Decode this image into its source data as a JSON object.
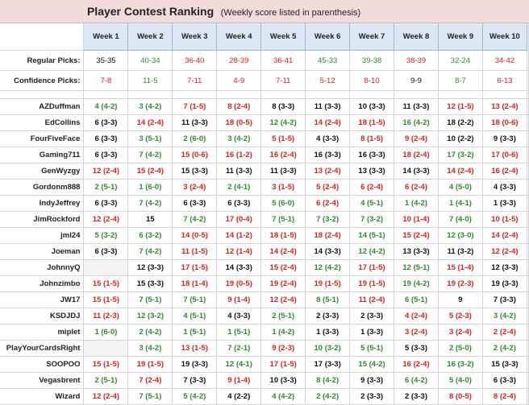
{
  "title": "Player Contest Ranking",
  "subtitle": "(Weekly score listed in parenthesis)",
  "colors": {
    "green": "#2e8b2e",
    "red": "#e0201c",
    "black": "#111111",
    "header_blue": "#dbe8f4",
    "title_pink": "#f2dcdb"
  },
  "weeks": [
    "Week 1",
    "Week 2",
    "Week 3",
    "Week 4",
    "Week 5",
    "Week 6",
    "Week 7",
    "Week 8",
    "Week 9",
    "Week 10"
  ],
  "regular": {
    "label": "Regular Picks:",
    "values": [
      {
        "t": "35-35",
        "c": "k"
      },
      {
        "t": "40-34",
        "c": "g"
      },
      {
        "t": "36-40",
        "c": "r"
      },
      {
        "t": "28-39",
        "c": "r"
      },
      {
        "t": "36-41",
        "c": "r"
      },
      {
        "t": "45-33",
        "c": "g"
      },
      {
        "t": "39-38",
        "c": "g"
      },
      {
        "t": "38-39",
        "c": "r"
      },
      {
        "t": "32-24",
        "c": "g"
      },
      {
        "t": "34-42",
        "c": "r"
      }
    ]
  },
  "confidence": {
    "label": "Confidence Picks:",
    "values": [
      {
        "t": "7-8",
        "c": "r"
      },
      {
        "t": "11-5",
        "c": "g"
      },
      {
        "t": "7-11",
        "c": "r"
      },
      {
        "t": "4-9",
        "c": "r"
      },
      {
        "t": "7-11",
        "c": "r"
      },
      {
        "t": "5-12",
        "c": "r"
      },
      {
        "t": "8-10",
        "c": "r"
      },
      {
        "t": "9-9",
        "c": "k"
      },
      {
        "t": "8-7",
        "c": "g"
      },
      {
        "t": "6-13",
        "c": "r"
      }
    ]
  },
  "players": [
    {
      "name": "AZDuffman",
      "scores": [
        {
          "t": "4 (4-2)",
          "c": "g"
        },
        {
          "t": "3 (4-2)",
          "c": "g"
        },
        {
          "t": "7 (1-5)",
          "c": "r"
        },
        {
          "t": "8 (2-4)",
          "c": "r"
        },
        {
          "t": "8 (3-3)",
          "c": "k"
        },
        {
          "t": "11 (3-3)",
          "c": "k"
        },
        {
          "t": "10 (3-3)",
          "c": "k"
        },
        {
          "t": "11 (3-3)",
          "c": "k"
        },
        {
          "t": "12 (1-5)",
          "c": "r"
        },
        {
          "t": "13 (2-4)",
          "c": "r"
        }
      ]
    },
    {
      "name": "EdCollins",
      "scores": [
        {
          "t": "6 (3-3)",
          "c": "k"
        },
        {
          "t": "14 (2-4)",
          "c": "r"
        },
        {
          "t": "11 (3-3)",
          "c": "k"
        },
        {
          "t": "18 (0-5)",
          "c": "r"
        },
        {
          "t": "12 (4-2)",
          "c": "g"
        },
        {
          "t": "14 (2-4)",
          "c": "r"
        },
        {
          "t": "18 (1-5)",
          "c": "r"
        },
        {
          "t": "16 (4-2)",
          "c": "g"
        },
        {
          "t": "18 (2-2)",
          "c": "k"
        },
        {
          "t": "18 (0-6)",
          "c": "r"
        }
      ]
    },
    {
      "name": "FourFiveFace",
      "scores": [
        {
          "t": "6 (3-3)",
          "c": "k"
        },
        {
          "t": "3 (5-1)",
          "c": "g"
        },
        {
          "t": "2 (6-0)",
          "c": "g"
        },
        {
          "t": "3 (4-2)",
          "c": "g"
        },
        {
          "t": "5 (1-5)",
          "c": "r"
        },
        {
          "t": "4 (3-3)",
          "c": "k"
        },
        {
          "t": "8 (1-5)",
          "c": "r"
        },
        {
          "t": "9 (2-4)",
          "c": "r"
        },
        {
          "t": "10 (2-2)",
          "c": "k"
        },
        {
          "t": "9 (3-3)",
          "c": "k"
        }
      ]
    },
    {
      "name": "Gaming711",
      "scores": [
        {
          "t": "6 (3-3)",
          "c": "k"
        },
        {
          "t": "7 (4-2)",
          "c": "g"
        },
        {
          "t": "15 (0-6)",
          "c": "r"
        },
        {
          "t": "16 (1-2)",
          "c": "r"
        },
        {
          "t": "16 (2-4)",
          "c": "r"
        },
        {
          "t": "16 (3-3)",
          "c": "k"
        },
        {
          "t": "16 (3-3)",
          "c": "k"
        },
        {
          "t": "18 (2-4)",
          "c": "r"
        },
        {
          "t": "17 (3-2)",
          "c": "g"
        },
        {
          "t": "17 (0-6)",
          "c": "r"
        }
      ]
    },
    {
      "name": "GenWyzgy",
      "scores": [
        {
          "t": "12 (2-4)",
          "c": "r"
        },
        {
          "t": "15 (2-4)",
          "c": "r"
        },
        {
          "t": "15 (3-3)",
          "c": "k"
        },
        {
          "t": "11 (3-3)",
          "c": "k"
        },
        {
          "t": "11 (3-3)",
          "c": "k"
        },
        {
          "t": "13 (2-4)",
          "c": "r"
        },
        {
          "t": "13 (3-3)",
          "c": "k"
        },
        {
          "t": "14 (3-3)",
          "c": "k"
        },
        {
          "t": "14 (2-4)",
          "c": "r"
        },
        {
          "t": "16 (2-4)",
          "c": "r"
        }
      ]
    },
    {
      "name": "Gordonm888",
      "scores": [
        {
          "t": "2 (5-1)",
          "c": "g"
        },
        {
          "t": "1 (6-0)",
          "c": "g"
        },
        {
          "t": "3 (2-4)",
          "c": "r"
        },
        {
          "t": "2 (4-1)",
          "c": "g"
        },
        {
          "t": "3 (1-5)",
          "c": "r"
        },
        {
          "t": "5 (2-4)",
          "c": "r"
        },
        {
          "t": "6 (2-4)",
          "c": "r"
        },
        {
          "t": "6 (2-4)",
          "c": "r"
        },
        {
          "t": "4 (5-0)",
          "c": "g"
        },
        {
          "t": "4 (3-3)",
          "c": "k"
        }
      ]
    },
    {
      "name": "IndyJeffrey",
      "scores": [
        {
          "t": "6 (3-3)",
          "c": "k"
        },
        {
          "t": "7 (4-2)",
          "c": "g"
        },
        {
          "t": "6 (3-3)",
          "c": "k"
        },
        {
          "t": "6 (3-3)",
          "c": "k"
        },
        {
          "t": "5 (6-0)",
          "c": "g"
        },
        {
          "t": "6 (2-4)",
          "c": "r"
        },
        {
          "t": "4 (5-1)",
          "c": "g"
        },
        {
          "t": "1 (4-2)",
          "c": "g"
        },
        {
          "t": "1 (4-1)",
          "c": "g"
        },
        {
          "t": "1 (3-3)",
          "c": "k"
        }
      ]
    },
    {
      "name": "JimRockford",
      "scores": [
        {
          "t": "12 (2-4)",
          "c": "r"
        },
        {
          "t": "15",
          "c": "k"
        },
        {
          "t": "7 (4-2)",
          "c": "g"
        },
        {
          "t": "17 (0-4)",
          "c": "r"
        },
        {
          "t": "7 (5-1)",
          "c": "g"
        },
        {
          "t": "7 (3-2)",
          "c": "g"
        },
        {
          "t": "7 (3-2)",
          "c": "g"
        },
        {
          "t": "10 (1-4)",
          "c": "r"
        },
        {
          "t": "7 (4-0)",
          "c": "g"
        },
        {
          "t": "10 (1-5)",
          "c": "r"
        }
      ]
    },
    {
      "name": "jml24",
      "scores": [
        {
          "t": "5 (3-2)",
          "c": "g"
        },
        {
          "t": "6 (3-2)",
          "c": "g"
        },
        {
          "t": "14 (0-5)",
          "c": "r"
        },
        {
          "t": "14 (1-2)",
          "c": "r"
        },
        {
          "t": "18 (1-5)",
          "c": "r"
        },
        {
          "t": "18 (2-4)",
          "c": "r"
        },
        {
          "t": "14 (5-1)",
          "c": "g"
        },
        {
          "t": "15 (2-4)",
          "c": "r"
        },
        {
          "t": "12 (3-0)",
          "c": "g"
        },
        {
          "t": "14 (2-4)",
          "c": "r"
        }
      ]
    },
    {
      "name": "Joeman",
      "scores": [
        {
          "t": "6 (3-3)",
          "c": "k"
        },
        {
          "t": "7 (4-2)",
          "c": "g"
        },
        {
          "t": "11 (1-5)",
          "c": "r"
        },
        {
          "t": "12 (1-4)",
          "c": "r"
        },
        {
          "t": "14 (2-4)",
          "c": "r"
        },
        {
          "t": "14 (3-3)",
          "c": "k"
        },
        {
          "t": "12 (4-2)",
          "c": "g"
        },
        {
          "t": "13 (3-3)",
          "c": "k"
        },
        {
          "t": "11 (3-2)",
          "c": "k"
        },
        {
          "t": "12 (2-4)",
          "c": "r"
        }
      ]
    },
    {
      "name": "JohnnyQ",
      "scores": [
        {
          "t": "",
          "c": "k",
          "gr": true
        },
        {
          "t": "12 (3-3)",
          "c": "k"
        },
        {
          "t": "17 (1-5)",
          "c": "r"
        },
        {
          "t": "14 (3-3)",
          "c": "k"
        },
        {
          "t": "15 (2-4)",
          "c": "r"
        },
        {
          "t": "12 (4-2)",
          "c": "g"
        },
        {
          "t": "17 (1-5)",
          "c": "r"
        },
        {
          "t": "12 (5-1)",
          "c": "g"
        },
        {
          "t": "15 (1-4)",
          "c": "r"
        },
        {
          "t": "12 (3-3)",
          "c": "k"
        }
      ]
    },
    {
      "name": "Johnzimbo",
      "scores": [
        {
          "t": "15 (1-5)",
          "c": "r"
        },
        {
          "t": "15 (3-3)",
          "c": "k"
        },
        {
          "t": "18 (1-4)",
          "c": "r"
        },
        {
          "t": "19 (0-5)",
          "c": "r"
        },
        {
          "t": "19 (2-4)",
          "c": "r"
        },
        {
          "t": "19 (1-5)",
          "c": "r"
        },
        {
          "t": "19 (1-5)",
          "c": "r"
        },
        {
          "t": "19 (4-2)",
          "c": "g"
        },
        {
          "t": "19 (2-3)",
          "c": "r"
        },
        {
          "t": "19 (3-3)",
          "c": "k"
        }
      ]
    },
    {
      "name": "JW17",
      "scores": [
        {
          "t": "15 (1-5)",
          "c": "r"
        },
        {
          "t": "7 (5-1)",
          "c": "g"
        },
        {
          "t": "7 (5-1)",
          "c": "g"
        },
        {
          "t": "9 (1-4)",
          "c": "r"
        },
        {
          "t": "12 (2-4)",
          "c": "r"
        },
        {
          "t": "8 (5-1)",
          "c": "g"
        },
        {
          "t": "11 (2-4)",
          "c": "r"
        },
        {
          "t": "6 (5-1)",
          "c": "g"
        },
        {
          "t": "9",
          "c": "k"
        },
        {
          "t": "7 (3-3)",
          "c": "k"
        }
      ]
    },
    {
      "name": "KSDJDJ",
      "scores": [
        {
          "t": "11 (2-3)",
          "c": "r"
        },
        {
          "t": "12 (3-2)",
          "c": "g"
        },
        {
          "t": "4 (5-1)",
          "c": "g"
        },
        {
          "t": "4 (3-3)",
          "c": "k"
        },
        {
          "t": "2 (5-1)",
          "c": "g"
        },
        {
          "t": "2 (3-3)",
          "c": "k"
        },
        {
          "t": "2 (3-3)",
          "c": "k"
        },
        {
          "t": "4 (2-4)",
          "c": "r"
        },
        {
          "t": "5 (2-3)",
          "c": "r"
        },
        {
          "t": "3 (4-2)",
          "c": "g"
        }
      ]
    },
    {
      "name": "miplet",
      "scores": [
        {
          "t": "1 (6-0)",
          "c": "g"
        },
        {
          "t": "2 (4-2)",
          "c": "g"
        },
        {
          "t": "1 (5-1)",
          "c": "g"
        },
        {
          "t": "1 (5-1)",
          "c": "g"
        },
        {
          "t": "1 (4-2)",
          "c": "g"
        },
        {
          "t": "1 (3-3)",
          "c": "k"
        },
        {
          "t": "1 (3-3)",
          "c": "k"
        },
        {
          "t": "3 (2-4)",
          "c": "r"
        },
        {
          "t": "3 (2-4)",
          "c": "r"
        },
        {
          "t": "2 (2-4)",
          "c": "r"
        }
      ]
    },
    {
      "name": "PlayYourCardsRight",
      "scores": [
        {
          "t": "",
          "c": "k",
          "gr": true
        },
        {
          "t": "3 (4-2)",
          "c": "g"
        },
        {
          "t": "13 (1-5)",
          "c": "r"
        },
        {
          "t": "7 (2-1)",
          "c": "g"
        },
        {
          "t": "9 (2-3)",
          "c": "r"
        },
        {
          "t": "10 (3-2)",
          "c": "g"
        },
        {
          "t": "5 (5-1)",
          "c": "g"
        },
        {
          "t": "5 (3-3)",
          "c": "k"
        },
        {
          "t": "2 (5-0)",
          "c": "g"
        },
        {
          "t": "2 (4-2)",
          "c": "g"
        }
      ]
    },
    {
      "name": "SOOPOO",
      "scores": [
        {
          "t": "15 (1-5)",
          "c": "r"
        },
        {
          "t": "19 (1-5)",
          "c": "r"
        },
        {
          "t": "19 (3-3)",
          "c": "k"
        },
        {
          "t": "12 (4-1)",
          "c": "g"
        },
        {
          "t": "17 (1-5)",
          "c": "r"
        },
        {
          "t": "17 (3-3)",
          "c": "k"
        },
        {
          "t": "15 (4-2)",
          "c": "g"
        },
        {
          "t": "16 (2-4)",
          "c": "r"
        },
        {
          "t": "16 (3-2)",
          "c": "g"
        },
        {
          "t": "15 (3-3)",
          "c": "k"
        }
      ]
    },
    {
      "name": "Vegasbrent",
      "scores": [
        {
          "t": "2 (5-1)",
          "c": "g"
        },
        {
          "t": "7 (2-4)",
          "c": "r"
        },
        {
          "t": "7 (3-3)",
          "c": "k"
        },
        {
          "t": "9 (1-4)",
          "c": "r"
        },
        {
          "t": "10 (3-3)",
          "c": "k"
        },
        {
          "t": "8 (4-2)",
          "c": "g"
        },
        {
          "t": "9 (3-3)",
          "c": "k"
        },
        {
          "t": "6 (4-2)",
          "c": "g"
        },
        {
          "t": "5 (4-0)",
          "c": "g"
        },
        {
          "t": "6 (3-3)",
          "c": "k"
        }
      ]
    },
    {
      "name": "Wizard",
      "scores": [
        {
          "t": "12 (2-4)",
          "c": "r"
        },
        {
          "t": "7 (5-1)",
          "c": "g"
        },
        {
          "t": "5 (4-2)",
          "c": "g"
        },
        {
          "t": "4 (2-2)",
          "c": "k"
        },
        {
          "t": "4 (4-2)",
          "c": "g"
        },
        {
          "t": "2 (4-2)",
          "c": "g"
        },
        {
          "t": "2 (3-3)",
          "c": "k"
        },
        {
          "t": "2 (3-3)",
          "c": "k"
        },
        {
          "t": "8 (0-5)",
          "c": "r"
        },
        {
          "t": "8 (2-4)",
          "c": "r"
        }
      ]
    }
  ]
}
